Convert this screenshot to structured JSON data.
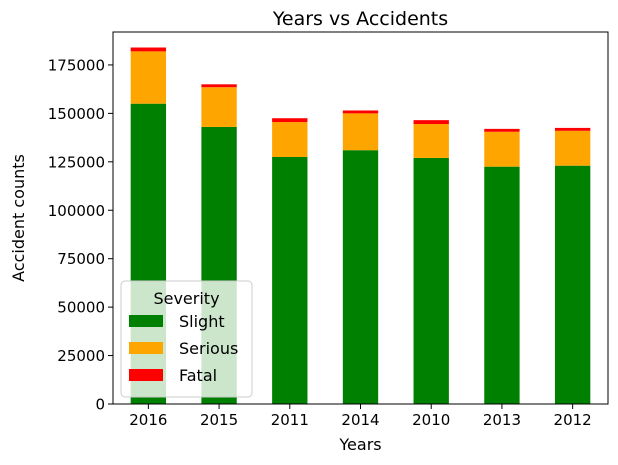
{
  "chart_data": {
    "type": "bar",
    "stacked": true,
    "title": "Years vs Accidents",
    "xlabel": "Years",
    "ylabel": "Accident counts",
    "categories": [
      "2016",
      "2015",
      "2011",
      "2014",
      "2010",
      "2013",
      "2012"
    ],
    "series": [
      {
        "name": "Slight",
        "color": "#008000",
        "values": [
          155000,
          143000,
          127500,
          131000,
          127000,
          122500,
          123000
        ]
      },
      {
        "name": "Serious",
        "color": "#ffa500",
        "values": [
          27000,
          20500,
          18000,
          19000,
          17500,
          18000,
          18000
        ]
      },
      {
        "name": "Fatal",
        "color": "#ff0000",
        "values": [
          2000,
          1500,
          2000,
          1500,
          2000,
          1500,
          1500
        ]
      }
    ],
    "ylim": [
      0,
      192000
    ],
    "yticks": [
      0,
      25000,
      50000,
      75000,
      100000,
      125000,
      150000,
      175000
    ],
    "legend": {
      "title": "Severity",
      "placement": "lower-left"
    },
    "grid": false
  }
}
